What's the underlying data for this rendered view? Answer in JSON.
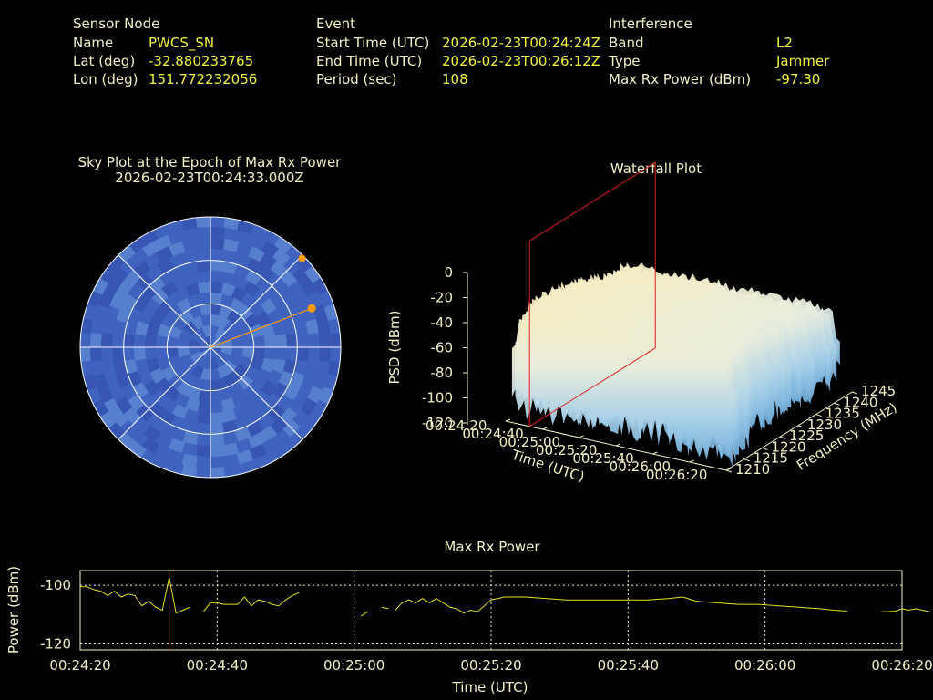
{
  "header": {
    "sensor": {
      "title": "Sensor Node",
      "rows": [
        {
          "label": "Name",
          "value": "PWCS_SN"
        },
        {
          "label": "Lat (deg)",
          "value": "-32.880233765"
        },
        {
          "label": "Lon (deg)",
          "value": "151.772232056"
        }
      ]
    },
    "event": {
      "title": "Event",
      "rows": [
        {
          "label": "Start Time (UTC)",
          "value": "2026-02-23T00:24:24Z"
        },
        {
          "label": "End Time (UTC)",
          "value": "2026-02-23T00:26:12Z"
        },
        {
          "label": "Period (sec)",
          "value": "108"
        }
      ]
    },
    "interference": {
      "title": "Interference",
      "rows": [
        {
          "label": "Band",
          "value": "L2"
        },
        {
          "label": "Type",
          "value": "Jammer"
        },
        {
          "label": "Max Rx Power (dBm)",
          "value": "-97.30"
        }
      ]
    }
  },
  "colors": {
    "text": "#f3f0c6",
    "value": "#f2f23c",
    "sky_fill": "#4163c0",
    "sky_fill_light": "#5a84d0",
    "marker": "#ff9900",
    "waterfall_high": "#f6edc2",
    "waterfall_low": "#6aa8d8",
    "cursor": "#e02020",
    "power_line": "#e6e01a"
  },
  "chart_data": [
    {
      "type": "scatter",
      "title": "Sky Plot at the Epoch of Max Rx Power",
      "subtitle": "2026-02-23T00:24:33.000Z",
      "rings_deg_elevation": [
        0,
        30,
        60,
        90
      ],
      "marker": {
        "azimuth_deg": 69,
        "elevation_deg": 15
      }
    },
    {
      "type": "area",
      "title": "Waterfall Plot",
      "zlabel": "PSD (dBm)",
      "z_ticks": [
        "0",
        "-20",
        "-40",
        "-60",
        "-80",
        "-100",
        "-120"
      ],
      "zlim": [
        -120,
        0
      ],
      "xlabel": "Time (UTC)",
      "x_ticks": [
        "00:24:20",
        "00:24:40",
        "00:25:00",
        "00:25:20",
        "00:25:40",
        "00:26:00",
        "00:26:20"
      ],
      "ylabel": "Frequency (MHz)",
      "y_ticks": [
        "1210",
        "1215",
        "1220",
        "1225",
        "1230",
        "1235",
        "1240",
        "1245"
      ],
      "cursor_time": "00:24:33"
    },
    {
      "type": "line",
      "title": "Max Rx Power",
      "xlabel": "Time (UTC)",
      "ylabel": "Power (dBm)",
      "x_ticks": [
        "00:24:20",
        "00:24:40",
        "00:25:00",
        "00:25:20",
        "00:25:40",
        "00:26:00",
        "00:26:20"
      ],
      "y_ticks": [
        "-100",
        "-120"
      ],
      "ylim": [
        -122,
        -95
      ],
      "cursor_time": "00:24:33",
      "grid": true,
      "segments": [
        [
          [
            "00:24:20",
            -100.5
          ],
          [
            "00:24:21",
            -100.5
          ],
          [
            "00:24:22",
            -101.5
          ],
          [
            "00:24:23",
            -102
          ],
          [
            "00:24:24",
            -103.5
          ],
          [
            "00:24:25",
            -102
          ],
          [
            "00:24:26",
            -104
          ],
          [
            "00:24:27",
            -103
          ],
          [
            "00:24:28",
            -103.5
          ],
          [
            "00:24:29",
            -107
          ],
          [
            "00:24:30",
            -105.5
          ],
          [
            "00:24:31",
            -107.5
          ],
          [
            "00:24:32",
            -108.5
          ],
          [
            "00:24:33",
            -97.3
          ],
          [
            "00:24:34",
            -109.5
          ],
          [
            "00:24:35",
            -108.5
          ],
          [
            "00:24:36",
            -107.5
          ]
        ],
        [
          [
            "00:24:38",
            -109
          ],
          [
            "00:24:39",
            -106
          ],
          [
            "00:24:40",
            -106
          ],
          [
            "00:24:41",
            -106.5
          ],
          [
            "00:24:42",
            -106.5
          ],
          [
            "00:24:43",
            -106.5
          ],
          [
            "00:24:44",
            -104
          ],
          [
            "00:24:45",
            -107
          ],
          [
            "00:24:46",
            -105
          ],
          [
            "00:24:47",
            -105.5
          ],
          [
            "00:24:48",
            -106.5
          ],
          [
            "00:24:49",
            -107
          ],
          [
            "00:24:50",
            -105
          ],
          [
            "00:24:51",
            -103.5
          ],
          [
            "00:24:52",
            -102.5
          ]
        ],
        [
          [
            "00:25:01",
            -110.5
          ],
          [
            "00:25:02",
            -109
          ]
        ],
        [
          [
            "00:25:04",
            -107.5
          ],
          [
            "00:25:05",
            -108
          ]
        ],
        [
          [
            "00:25:06",
            -108.5
          ],
          [
            "00:25:07",
            -106
          ],
          [
            "00:25:08",
            -105
          ],
          [
            "00:25:09",
            -106
          ],
          [
            "00:25:10",
            -104.5
          ],
          [
            "00:25:11",
            -106
          ],
          [
            "00:25:12",
            -104.5
          ],
          [
            "00:25:13",
            -106
          ],
          [
            "00:25:14",
            -107.5
          ],
          [
            "00:25:15",
            -108
          ],
          [
            "00:25:16",
            -109.5
          ],
          [
            "00:25:17",
            -108.5
          ],
          [
            "00:25:18",
            -109
          ],
          [
            "00:25:19",
            -107
          ],
          [
            "00:25:20",
            -105
          ],
          [
            "00:25:22",
            -104
          ],
          [
            "00:25:25",
            -104
          ],
          [
            "00:25:28",
            -104.5
          ],
          [
            "00:25:31",
            -105
          ],
          [
            "00:25:34",
            -105
          ],
          [
            "00:25:37",
            -105
          ],
          [
            "00:25:40",
            -105
          ],
          [
            "00:25:43",
            -105
          ],
          [
            "00:25:46",
            -104.5
          ],
          [
            "00:25:48",
            -104
          ],
          [
            "00:25:50",
            -105.5
          ],
          [
            "00:25:53",
            -106
          ],
          [
            "00:25:56",
            -106.5
          ],
          [
            "00:25:59",
            -106.5
          ],
          [
            "00:26:02",
            -107
          ],
          [
            "00:26:05",
            -107.5
          ],
          [
            "00:26:08",
            -108
          ],
          [
            "00:26:10",
            -108.5
          ],
          [
            "00:26:12",
            -108.8
          ]
        ],
        [
          [
            "00:26:17",
            -109
          ],
          [
            "00:26:18",
            -109
          ],
          [
            "00:26:19",
            -108.8
          ],
          [
            "00:26:20",
            -108
          ],
          [
            "00:26:21",
            -108.5
          ],
          [
            "00:26:22",
            -108
          ],
          [
            "00:26:23",
            -108.5
          ],
          [
            "00:26:24",
            -109
          ]
        ]
      ]
    }
  ]
}
